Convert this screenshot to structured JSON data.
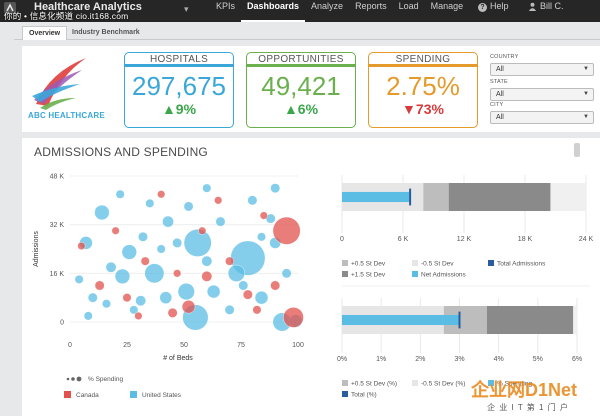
{
  "app": {
    "title": "Healthcare Analytics",
    "watermark": "你的 • 信息化频道 cio.it168.com"
  },
  "nav": {
    "items": [
      {
        "label": "KPIs",
        "active": false
      },
      {
        "label": "Dashboards",
        "active": true
      },
      {
        "label": "Analyze",
        "active": false
      },
      {
        "label": "Reports",
        "active": false
      },
      {
        "label": "Load",
        "active": false
      },
      {
        "label": "Manage",
        "active": false
      }
    ],
    "help": "Help",
    "user": "Bill C."
  },
  "subtabs": [
    {
      "label": "Overview",
      "active": true
    },
    {
      "label": "Industry Benchmark",
      "active": false
    }
  ],
  "brand": {
    "name": "ABC HEALTHCARE"
  },
  "kpis": [
    {
      "title": "HOSPITALS",
      "value": "297,675",
      "delta": "▲9%",
      "color": "#3ba7d9",
      "delta_color": "#3aa64a"
    },
    {
      "title": "OPPORTUNITIES",
      "value": "49,421",
      "delta": "▲6%",
      "color": "#6ab04c",
      "delta_color": "#3aa64a"
    },
    {
      "title": "SPENDING",
      "value": "2.75%",
      "delta": "▼73%",
      "color": "#e59a2c",
      "delta_color": "#d63b3b"
    }
  ],
  "filters": [
    {
      "label": "COUNTRY",
      "value": "All"
    },
    {
      "label": "STATE",
      "value": "All"
    },
    {
      "label": "CITY",
      "value": "All"
    }
  ],
  "panel": {
    "title": "ADMISSIONS AND SPENDING"
  },
  "chart_data": [
    {
      "type": "scatter",
      "title": "",
      "xlabel": "# of Beds",
      "ylabel": "Admissions",
      "xlim": [
        0,
        100
      ],
      "ylim": [
        0,
        48000
      ],
      "x_ticks": [
        "0",
        "25",
        "50",
        "75",
        "100"
      ],
      "y_ticks": [
        "0",
        "16 K",
        "32 K",
        "48 K"
      ],
      "size_legend": "% Spending",
      "series": [
        {
          "name": "Canada",
          "color": "#e2514d",
          "points": [
            [
              95,
              30000,
              1.3
            ],
            [
              98,
              1500,
              0.9
            ],
            [
              52,
              5000,
              0.5
            ],
            [
              60,
              15000,
              0.35
            ],
            [
              13,
              12000,
              0.3
            ],
            [
              33,
              20000,
              0.25
            ],
            [
              40,
              42000,
              0.2
            ],
            [
              45,
              3000,
              0.3
            ],
            [
              70,
              20000,
              0.25
            ],
            [
              85,
              35000,
              0.2
            ],
            [
              25,
              8000,
              0.25
            ],
            [
              78,
              9000,
              0.3
            ],
            [
              5,
              25000,
              0.2
            ],
            [
              65,
              40000,
              0.2
            ],
            [
              90,
              12000,
              0.3
            ],
            [
              30,
              2000,
              0.2
            ],
            [
              58,
              30000,
              0.2
            ],
            [
              47,
              16000,
              0.2
            ],
            [
              82,
              4000,
              0.25
            ],
            [
              20,
              30000,
              0.2
            ]
          ]
        },
        {
          "name": "United States",
          "color": "#5bbde4",
          "points": [
            [
              78,
              21000,
              1.7
            ],
            [
              56,
              26000,
              1.3
            ],
            [
              55,
              1500,
              1.2
            ],
            [
              37,
              16000,
              0.85
            ],
            [
              73,
              16000,
              0.7
            ],
            [
              51,
              10000,
              0.7
            ],
            [
              23,
              15000,
              0.6
            ],
            [
              26,
              23000,
              0.6
            ],
            [
              14,
              36000,
              0.6
            ],
            [
              7,
              26000,
              0.5
            ],
            [
              63,
              10000,
              0.5
            ],
            [
              93,
              0,
              0.8
            ],
            [
              99,
              300,
              0.5
            ],
            [
              84,
              8000,
              0.5
            ],
            [
              90,
              26000,
              0.4
            ],
            [
              43,
              33000,
              0.4
            ],
            [
              60,
              20000,
              0.35
            ],
            [
              42,
              8000,
              0.45
            ],
            [
              31,
              7000,
              0.35
            ],
            [
              18,
              18000,
              0.35
            ],
            [
              10,
              8000,
              0.3
            ],
            [
              47,
              26000,
              0.3
            ],
            [
              88,
              34000,
              0.3
            ],
            [
              95,
              16000,
              0.3
            ],
            [
              66,
              33000,
              0.3
            ],
            [
              80,
              40000,
              0.3
            ],
            [
              4,
              14000,
              0.25
            ],
            [
              35,
              39000,
              0.25
            ],
            [
              28,
              4000,
              0.25
            ],
            [
              70,
              4000,
              0.3
            ],
            [
              52,
              38000,
              0.3
            ],
            [
              16,
              6000,
              0.25
            ],
            [
              84,
              28000,
              0.25
            ],
            [
              40,
              24000,
              0.25
            ],
            [
              76,
              12000,
              0.3
            ],
            [
              60,
              44000,
              0.25
            ],
            [
              22,
              42000,
              0.25
            ],
            [
              90,
              44000,
              0.3
            ],
            [
              32,
              28000,
              0.3
            ],
            [
              8,
              2000,
              0.25
            ]
          ]
        }
      ]
    },
    {
      "type": "bullet",
      "title": "",
      "xlim": [
        0,
        24000
      ],
      "x_ticks": [
        "0",
        "6 K",
        "12 K",
        "18 K",
        "24 K"
      ],
      "bands": [
        {
          "name": "-0.5 St Dev",
          "to": 8000,
          "color": "#e6e6e6"
        },
        {
          "name": "+0.5 St Dev",
          "to": 10500,
          "color": "#bdbdbd"
        },
        {
          "name": "+1.5 St Dev",
          "to": 20500,
          "color": "#8a8a8a"
        }
      ],
      "background_color": "#f0f0f0",
      "bar": {
        "name": "Net Admissions",
        "value": 6700,
        "color": "#5bbde4"
      },
      "target": {
        "name": "Total Admissions",
        "value": 6700,
        "color": "#2a5d9e"
      },
      "legend": [
        "+0.5 St Dev",
        "-0.5 St Dev",
        "Total Admissions",
        "+1.5 St Dev",
        "Net Admissions"
      ]
    },
    {
      "type": "bullet",
      "title": "",
      "xlim": [
        0,
        6
      ],
      "x_ticks": [
        "0%",
        "1%",
        "2%",
        "3%",
        "4%",
        "5%",
        "6%"
      ],
      "bands": [
        {
          "name": "-0.5 St Dev (%)",
          "to": 2.6,
          "color": "#e6e6e6"
        },
        {
          "name": "+0.5 St Dev (%)",
          "to": 3.7,
          "color": "#bdbdbd"
        },
        {
          "name": "+1.5 St Dev (%)",
          "to": 5.9,
          "color": "#8a8a8a"
        }
      ],
      "background_color": "#f0f0f0",
      "bar": {
        "name": "% Spending",
        "value": 3.0,
        "color": "#5bbde4"
      },
      "target": {
        "name": "Total (%)",
        "value": 3.0,
        "color": "#2a5d9e"
      },
      "legend": [
        "+0.5 St Dev (%)",
        "-0.5 St Dev (%)",
        "% Spending",
        "Total (%)"
      ]
    }
  ],
  "corner_watermark": {
    "brand": "企业网D1Net",
    "sub": "企 业 I T 第 1 门 户"
  }
}
